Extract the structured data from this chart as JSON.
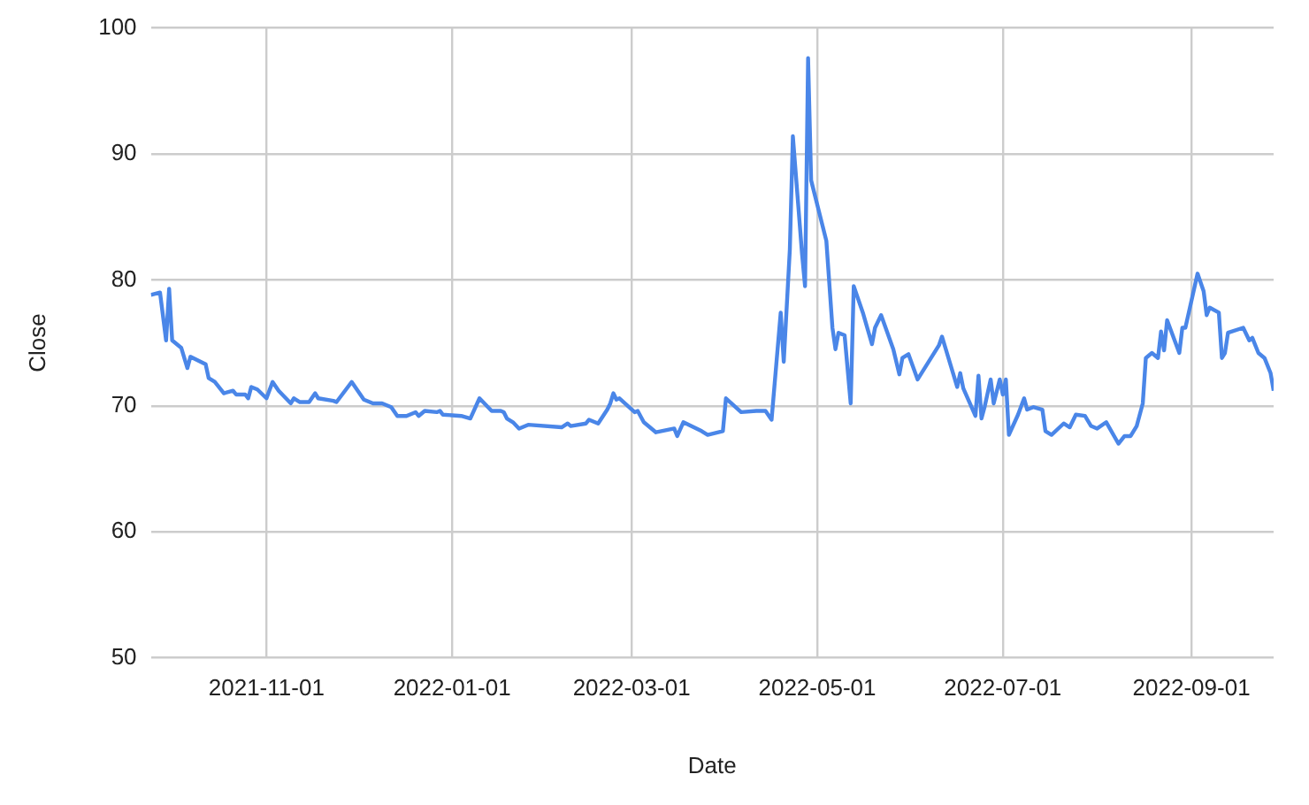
{
  "chart_data": {
    "type": "line",
    "xlabel": "Date",
    "ylabel": "Close",
    "xlim": [
      "2021-09-24",
      "2022-09-28"
    ],
    "xticks": [
      "2021-11-01",
      "2022-01-01",
      "2022-03-01",
      "2022-05-01",
      "2022-07-01",
      "2022-09-01"
    ],
    "ylim": [
      50,
      100
    ],
    "yticks": [
      50,
      60,
      70,
      80,
      90,
      100
    ],
    "grid": true,
    "legend": false,
    "marker": "none",
    "line_style": "solid",
    "series": [
      {
        "color": "#4a86e8",
        "x": [
          "2021-09-24",
          "2021-09-27",
          "2021-09-29",
          "2021-09-30",
          "2021-10-01",
          "2021-10-04",
          "2021-10-06",
          "2021-10-07",
          "2021-10-12",
          "2021-10-13",
          "2021-10-15",
          "2021-10-18",
          "2021-10-21",
          "2021-10-22",
          "2021-10-25",
          "2021-10-26",
          "2021-10-27",
          "2021-10-29",
          "2021-11-01",
          "2021-11-03",
          "2021-11-05",
          "2021-11-09",
          "2021-11-10",
          "2021-11-12",
          "2021-11-15",
          "2021-11-17",
          "2021-11-18",
          "2021-11-23",
          "2021-11-24",
          "2021-11-29",
          "2021-12-03",
          "2021-12-06",
          "2021-12-09",
          "2021-12-12",
          "2021-12-14",
          "2021-12-17",
          "2021-12-20",
          "2021-12-21",
          "2021-12-23",
          "2021-12-27",
          "2021-12-28",
          "2021-12-29",
          "2022-01-04",
          "2022-01-07",
          "2022-01-10",
          "2022-01-14",
          "2022-01-17",
          "2022-01-18",
          "2022-01-19",
          "2022-01-21",
          "2022-01-23",
          "2022-01-26",
          "2022-02-06",
          "2022-02-08",
          "2022-02-09",
          "2022-02-14",
          "2022-02-15",
          "2022-02-18",
          "2022-02-21",
          "2022-02-22",
          "2022-02-23",
          "2022-02-24",
          "2022-02-25",
          "2022-03-02",
          "2022-03-03",
          "2022-03-05",
          "2022-03-09",
          "2022-03-15",
          "2022-03-16",
          "2022-03-18",
          "2022-03-24",
          "2022-03-26",
          "2022-03-31",
          "2022-04-01",
          "2022-04-06",
          "2022-04-11",
          "2022-04-14",
          "2022-04-16",
          "2022-04-19",
          "2022-04-20",
          "2022-04-22",
          "2022-04-23",
          "2022-04-26",
          "2022-04-27",
          "2022-04-28",
          "2022-04-29",
          "2022-05-04",
          "2022-05-06",
          "2022-05-07",
          "2022-05-08",
          "2022-05-10",
          "2022-05-12",
          "2022-05-13",
          "2022-05-16",
          "2022-05-19",
          "2022-05-20",
          "2022-05-22",
          "2022-05-26",
          "2022-05-28",
          "2022-05-29",
          "2022-05-31",
          "2022-06-03",
          "2022-06-10",
          "2022-06-11",
          "2022-06-16",
          "2022-06-17",
          "2022-06-18",
          "2022-06-22",
          "2022-06-23",
          "2022-06-24",
          "2022-06-25",
          "2022-06-27",
          "2022-06-28",
          "2022-06-30",
          "2022-07-01",
          "2022-07-02",
          "2022-07-03",
          "2022-07-06",
          "2022-07-08",
          "2022-07-09",
          "2022-07-11",
          "2022-07-14",
          "2022-07-15",
          "2022-07-17",
          "2022-07-21",
          "2022-07-23",
          "2022-07-25",
          "2022-07-28",
          "2022-07-30",
          "2022-08-01",
          "2022-08-04",
          "2022-08-08",
          "2022-08-10",
          "2022-08-12",
          "2022-08-14",
          "2022-08-16",
          "2022-08-17",
          "2022-08-19",
          "2022-08-21",
          "2022-08-22",
          "2022-08-23",
          "2022-08-24",
          "2022-08-28",
          "2022-08-29",
          "2022-08-30",
          "2022-09-03",
          "2022-09-05",
          "2022-09-06",
          "2022-09-07",
          "2022-09-10",
          "2022-09-11",
          "2022-09-12",
          "2022-09-13",
          "2022-09-18",
          "2022-09-20",
          "2022-09-21",
          "2022-09-23",
          "2022-09-25",
          "2022-09-27",
          "2022-09-28"
        ],
        "values": [
          78.8,
          79,
          75.2,
          79.3,
          75.2,
          74.6,
          73,
          73.9,
          73.3,
          72.2,
          71.9,
          71,
          71.2,
          70.9,
          70.9,
          70.6,
          71.5,
          71.3,
          70.6,
          71.9,
          71.2,
          70.2,
          70.6,
          70.3,
          70.3,
          71,
          70.6,
          70.4,
          70.3,
          71.9,
          70.5,
          70.2,
          70.2,
          69.9,
          69.2,
          69.2,
          69.5,
          69.2,
          69.6,
          69.5,
          69.6,
          69.3,
          69.2,
          69,
          70.6,
          69.6,
          69.6,
          69.5,
          69,
          68.7,
          68.2,
          68.5,
          68.3,
          68.6,
          68.4,
          68.6,
          68.9,
          68.6,
          69.7,
          70.2,
          71,
          70.5,
          70.6,
          69.5,
          69.6,
          68.7,
          67.9,
          68.2,
          67.6,
          68.7,
          68,
          67.7,
          68,
          70.6,
          69.5,
          69.6,
          69.6,
          68.9,
          77.4,
          73.5,
          82.4,
          91.4,
          82.1,
          79.5,
          97.6,
          87.9,
          83.1,
          76.2,
          74.5,
          75.8,
          75.6,
          70.2,
          79.5,
          77.4,
          74.9,
          76.2,
          77.2,
          74.5,
          72.5,
          73.8,
          74.1,
          72.1,
          74.8,
          75.5,
          71.5,
          72.6,
          71.4,
          69.2,
          72.4,
          69,
          69.9,
          72.1,
          70.2,
          72.1,
          70.9,
          72.1,
          67.7,
          69.3,
          70.6,
          69.7,
          69.9,
          69.7,
          68,
          67.7,
          68.6,
          68.3,
          69.3,
          69.2,
          68.4,
          68.2,
          68.7,
          67,
          67.6,
          67.6,
          68.4,
          70.2,
          73.8,
          74.2,
          73.8,
          75.9,
          74.4,
          76.8,
          74.2,
          76.2,
          76.2,
          80.5,
          79.1,
          77.2,
          77.8,
          77.4,
          73.8,
          74.2,
          75.8,
          76.2,
          75.2,
          75.4,
          74.2,
          73.8,
          72.6,
          71.2
        ]
      }
    ]
  }
}
